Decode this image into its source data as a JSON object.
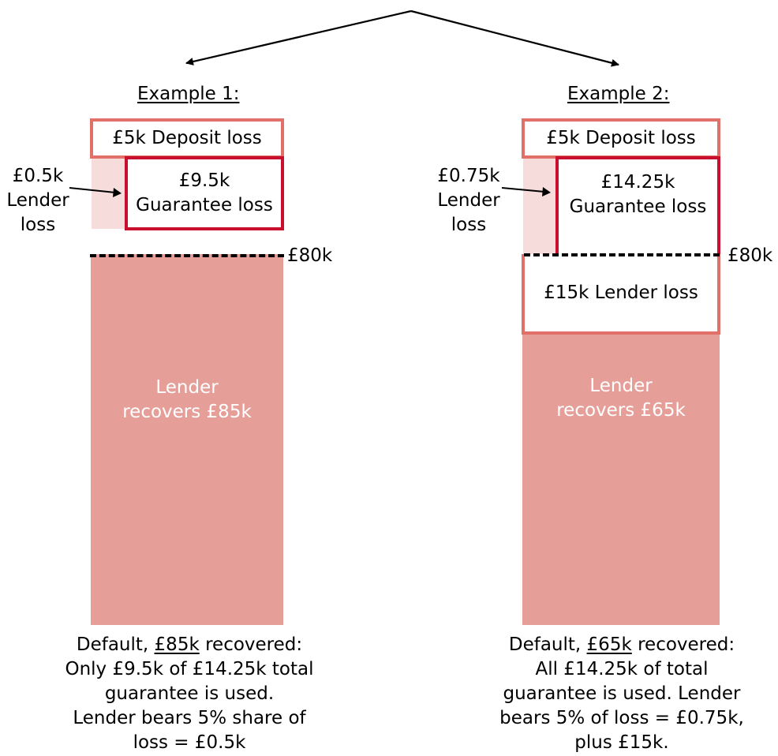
{
  "colors": {
    "recovery_fill": "#e69e99",
    "deposit_border": "#e07068",
    "guarantee_border": "#c8102e",
    "lender_loss_fill": "#f6dcdb",
    "dashed_line": "#000000"
  },
  "examples": [
    {
      "heading": "Example 1:",
      "deposit_loss": "£5k Deposit loss",
      "guarantee_loss_amount": "£9.5k",
      "guarantee_loss_label": "Guarantee loss",
      "lender_loss_side": [
        "£0.5k",
        "Lender",
        "loss"
      ],
      "threshold": "£80k",
      "recovery": [
        "Lender",
        "recovers £85k"
      ],
      "caption": {
        "prefix": "Default, ",
        "recovered_amount": "£85k",
        "suffix": " recovered:",
        "lines": [
          "Only £9.5k of £14.25k total",
          "guarantee is used.",
          "Lender bears 5% share of",
          "loss = £0.5k"
        ]
      }
    },
    {
      "heading": "Example 2:",
      "deposit_loss": "£5k Deposit loss",
      "guarantee_loss_amount": "£14.25k",
      "guarantee_loss_label": "Guarantee loss",
      "lender_loss_side": [
        "£0.75k",
        "Lender",
        "loss"
      ],
      "threshold": "£80k",
      "lender_loss_box": "£15k Lender loss",
      "recovery": [
        "Lender",
        "recovers £65k"
      ],
      "caption": {
        "prefix": "Default, ",
        "recovered_amount": "£65k",
        "suffix": " recovered:",
        "lines": [
          "All £14.25k of total",
          "guarantee is used. Lender",
          "bears 5% of loss = £0.75k,",
          "plus £15k."
        ]
      }
    }
  ]
}
